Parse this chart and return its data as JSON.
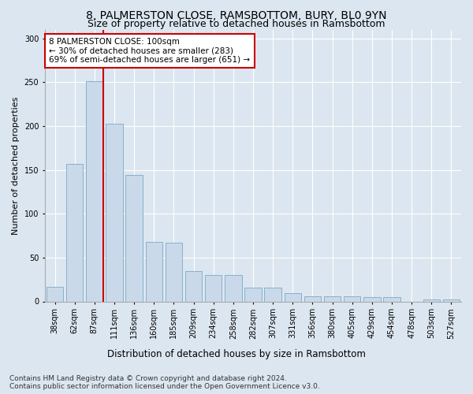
{
  "title1": "8, PALMERSTON CLOSE, RAMSBOTTOM, BURY, BL0 9YN",
  "title2": "Size of property relative to detached houses in Ramsbottom",
  "xlabel": "Distribution of detached houses by size in Ramsbottom",
  "ylabel": "Number of detached properties",
  "categories": [
    "38sqm",
    "62sqm",
    "87sqm",
    "111sqm",
    "136sqm",
    "160sqm",
    "185sqm",
    "209sqm",
    "234sqm",
    "258sqm",
    "282sqm",
    "307sqm",
    "331sqm",
    "356sqm",
    "380sqm",
    "405sqm",
    "429sqm",
    "454sqm",
    "478sqm",
    "503sqm",
    "527sqm"
  ],
  "values": [
    17,
    157,
    251,
    203,
    144,
    68,
    67,
    35,
    30,
    30,
    16,
    16,
    9,
    6,
    6,
    6,
    5,
    5,
    0,
    2,
    2
  ],
  "bar_color": "#c9d9ea",
  "bar_edge_color": "#7aaac8",
  "vline_color": "#cc0000",
  "annotation_text": "8 PALMERSTON CLOSE: 100sqm\n← 30% of detached houses are smaller (283)\n69% of semi-detached houses are larger (651) →",
  "annotation_box_facecolor": "#ffffff",
  "annotation_box_edgecolor": "#cc0000",
  "ylim": [
    0,
    310
  ],
  "yticks": [
    0,
    50,
    100,
    150,
    200,
    250,
    300
  ],
  "bg_color": "#dce6f0",
  "plot_bg": "#dce6f0",
  "grid_color": "#ffffff",
  "footer": "Contains HM Land Registry data © Crown copyright and database right 2024.\nContains public sector information licensed under the Open Government Licence v3.0.",
  "title1_fontsize": 10,
  "title2_fontsize": 9,
  "xlabel_fontsize": 8.5,
  "ylabel_fontsize": 8,
  "tick_fontsize": 7,
  "annot_fontsize": 7.5,
  "footer_fontsize": 6.5
}
